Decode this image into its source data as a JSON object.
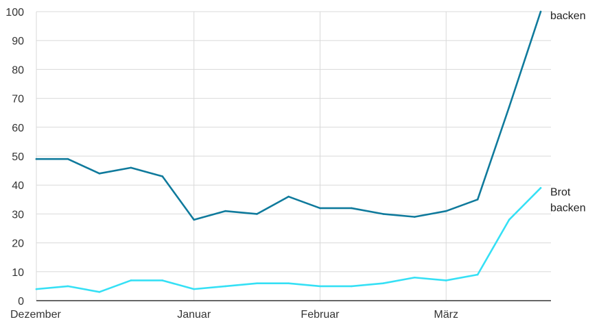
{
  "chart_data": {
    "type": "line",
    "ylim": [
      0,
      100
    ],
    "y_ticks": [
      "0",
      "10",
      "20",
      "30",
      "40",
      "50",
      "60",
      "70",
      "80",
      "90",
      "100"
    ],
    "x_tick_labels": [
      {
        "label": "Dezember",
        "index": 0
      },
      {
        "label": "Januar",
        "index": 5
      },
      {
        "label": "Februar",
        "index": 9
      },
      {
        "label": "März",
        "index": 13
      }
    ],
    "point_count": 17,
    "grid": true,
    "series": [
      {
        "label_lines": [
          "",
          "backen"
        ],
        "color": "#0f7a9c",
        "values": [
          49,
          49,
          44,
          46,
          43,
          28,
          31,
          30,
          36,
          32,
          32,
          30,
          29,
          31,
          35,
          67,
          100
        ]
      },
      {
        "label_lines": [
          "Brot",
          "backen"
        ],
        "color": "#35e0f5",
        "values": [
          4,
          5,
          3,
          7,
          7,
          4,
          5,
          6,
          6,
          5,
          5,
          6,
          8,
          7,
          9,
          28,
          39
        ]
      }
    ]
  }
}
